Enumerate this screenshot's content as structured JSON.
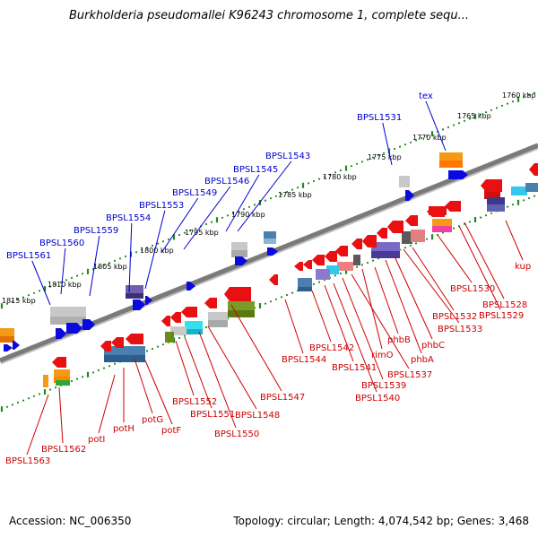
{
  "title": "Burkholderia pseudomallei K96243 chromosome 1, complete sequ...",
  "footer": {
    "accession": "Accession: NC_006350",
    "topology": "Topology: circular; Length: 4,074,542 bp; Genes: 3,468"
  },
  "colors": {
    "forward_label": "#0000cc",
    "reverse_label": "#cc0000",
    "backbone": "#7a7a7a",
    "tick": "#1f8a1f"
  },
  "kbp_labels": [
    "1760 kbp",
    "1765 kbp",
    "1770 kbp",
    "1775 kbp",
    "1780 kbp",
    "1785 kbp",
    "1790 kbp",
    "1795 kbp",
    "1800 kbp",
    "1805 kbp",
    "1810 kbp",
    "1815 kbp"
  ],
  "forward_genes": [
    "tex",
    "BPSL1531",
    "BPSL1543",
    "BPSL1545",
    "BPSL1546",
    "BPSL1549",
    "BPSL1553",
    "BPSL1554",
    "BPSL1559",
    "BPSL1560",
    "BPSL1561"
  ],
  "reverse_genes": [
    "kup",
    "BPSL1528",
    "BPSL1529",
    "BPSL1530",
    "BPSL1532",
    "BPSL1533",
    "phbC",
    "phbA",
    "phbB",
    "rimO",
    "BPSL1537",
    "BPSL1539",
    "BPSL1540",
    "BPSL1541",
    "BPSL1542",
    "BPSL1544",
    "BPSL1547",
    "BPSL1548",
    "BPSL1550",
    "BPSL1551",
    "BPSL1552",
    "potF",
    "potG",
    "potH",
    "potI",
    "BPSL1562",
    "BPSL1563"
  ]
}
